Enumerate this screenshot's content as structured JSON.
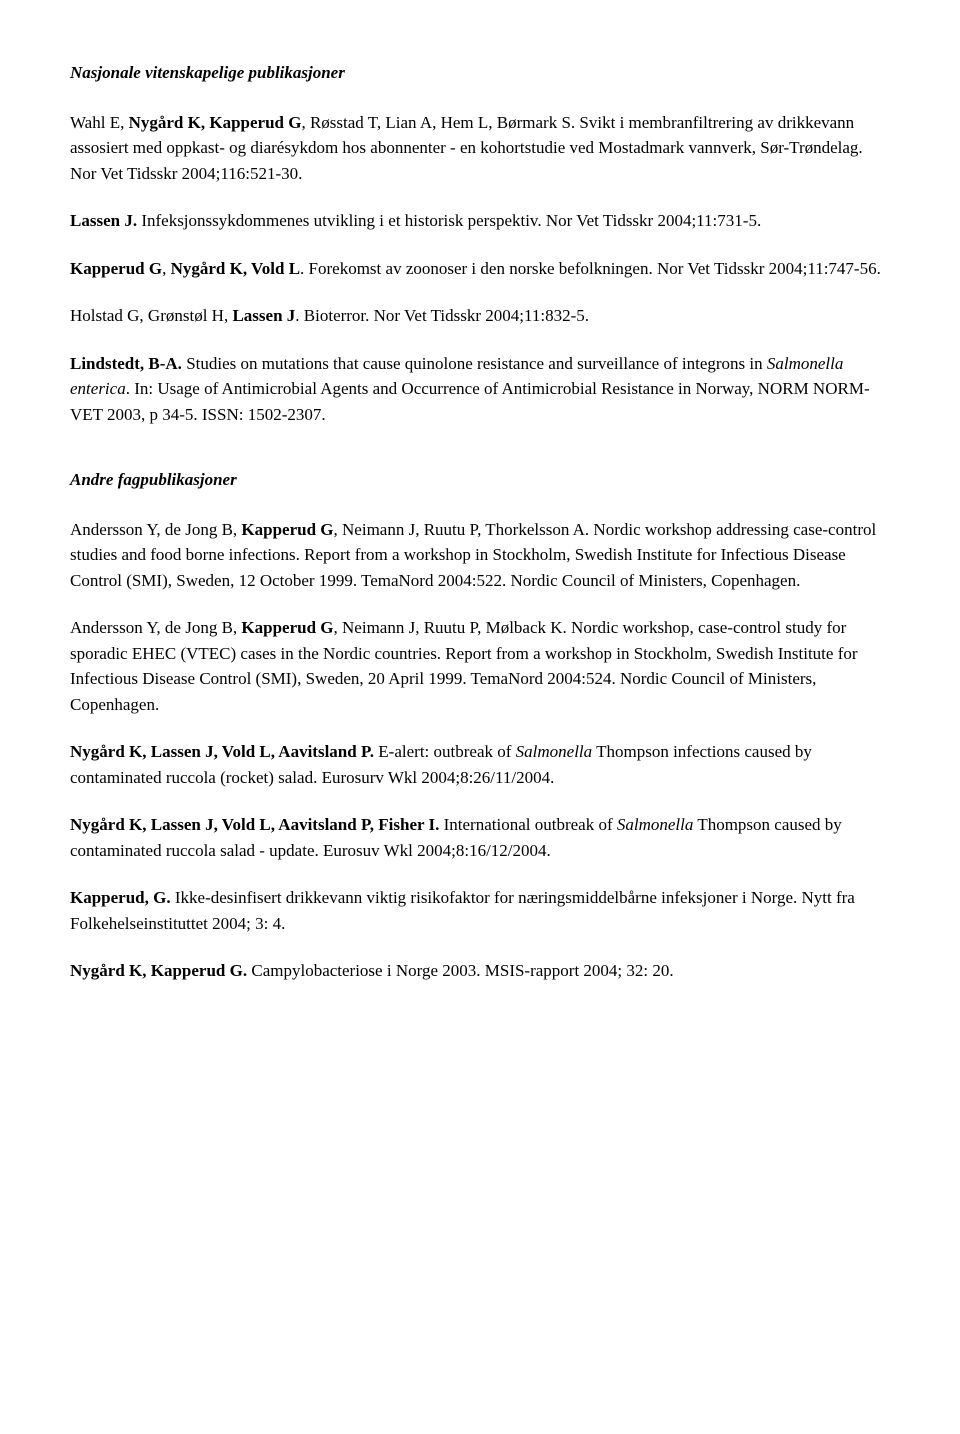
{
  "heading1": "Nasjonale vitenskapelige publikasjoner",
  "heading2": "Andre fagpublikasjoner",
  "e1": {
    "p1": "Wahl E, ",
    "b1": "Nygård K, Kapperud G",
    "p2": ", Røsstad T, Lian A, Hem L, Børmark S. Svikt i membranfiltrering av drikkevann assosiert med oppkast- og diarésykdom hos abonnenter - en kohortstudie ved Mostadmark vannverk, Sør-Trøndelag. Nor Vet Tidsskr 2004;116:521-30."
  },
  "e2": {
    "b1": "Lassen J.",
    "p1": " Infeksjonssykdommenes utvikling i et historisk perspektiv. Nor Vet Tidsskr 2004;11:731-5."
  },
  "e3": {
    "b1": "Kapperud G",
    "p1": ", ",
    "b2": "Nygård K, Vold L",
    "p2": ". Forekomst av zoonoser i den norske befolkningen. Nor Vet Tidsskr 2004;11:747-56."
  },
  "e4": {
    "p1": "Holstad G, Grønstøl H, ",
    "b1": "Lassen J",
    "p2": ". Bioterror. Nor Vet Tidsskr 2004;11:832-5."
  },
  "e5": {
    "b1": "Lindstedt, B-A.",
    "p1": " Studies on mutations that cause quinolone resistance and surveillance of integrons in ",
    "i1": "Salmonella enterica",
    "p2": ". In: Usage of Antimicrobial Agents and Occurrence of Antimicrobial Resistance in Norway, NORM NORM-VET 2003, p 34-5. ISSN: 1502-2307."
  },
  "e6": {
    "p1": "Andersson Y, de Jong B, ",
    "b1": "Kapperud G",
    "p2": ", Neimann J, Ruutu P, Thorkelsson A. Nordic workshop addressing case-control studies and food borne infections. Report from a workshop in Stockholm, Swedish Institute for Infectious Disease Control (SMI), Sweden, 12 October 1999. TemaNord 2004:522. Nordic Council of Ministers, Copenhagen."
  },
  "e7": {
    "p1": "Andersson Y, de Jong B, ",
    "b1": "Kapperud G",
    "p2": ", Neimann J, Ruutu P, Mølback K. Nordic workshop, case-control study for sporadic EHEC (VTEC) cases in the Nordic countries. Report from a workshop in Stockholm, Swedish Institute for Infectious Disease Control (SMI), Sweden, 20 April 1999. TemaNord 2004:524. Nordic Council of Ministers, Copenhagen."
  },
  "e8": {
    "b1": "Nygård K, Lassen J, Vold L, Aavitsland P.",
    "p1": " E-alert: outbreak of ",
    "i1": "Salmonella",
    "p2": " Thompson infections caused by contaminated ruccola (rocket) salad. Eurosurv Wkl 2004;8:26/11/2004."
  },
  "e9": {
    "b1": "Nygård K, Lassen J, Vold L, Aavitsland P, Fisher I.",
    "p1": " International outbreak of ",
    "i1": "Salmonella",
    "p2": " Thompson caused by contaminated ruccola salad - update.  Eurosuv Wkl 2004;8:16/12/2004."
  },
  "e10": {
    "b1": "Kapperud, G.",
    "p1": " Ikke-desinfisert drikkevann viktig risikofaktor for næringsmiddelbårne infeksjoner i Norge. Nytt fra Folkehelseinstituttet 2004; 3: 4."
  },
  "e11": {
    "b1": "Nygård K, Kapperud G.",
    "p1": " Campylobacteriose i Norge 2003. MSIS-rapport 2004; 32: 20."
  }
}
